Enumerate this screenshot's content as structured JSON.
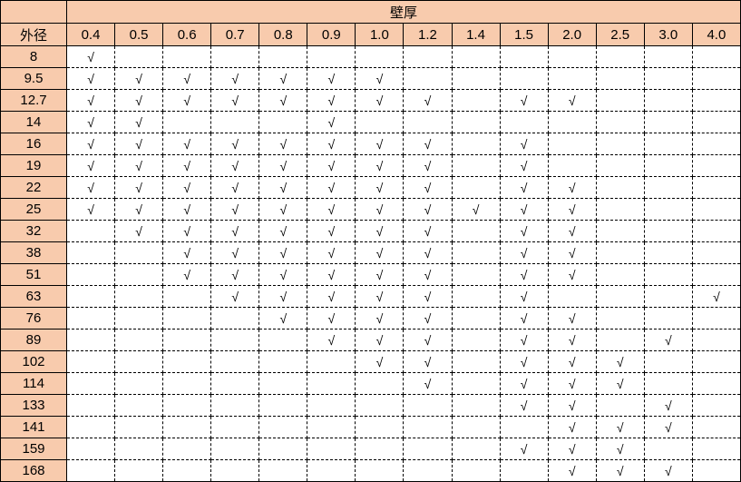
{
  "table": {
    "group_header": "壁厚",
    "row_header": "外径",
    "header_color": "#f8cbad",
    "columns": [
      "0.4",
      "0.5",
      "0.6",
      "0.7",
      "0.8",
      "0.9",
      "1.0",
      "1.2",
      "1.4",
      "1.5",
      "2.0",
      "2.5",
      "3.0",
      "4.0"
    ],
    "rows": [
      {
        "od": "8",
        "checks": [
          "√",
          "",
          "",
          "",
          "",
          "",
          "",
          "",
          "",
          "",
          "",
          "",
          "",
          ""
        ]
      },
      {
        "od": "9.5",
        "checks": [
          "√",
          "√",
          "√",
          "√",
          "√",
          "√",
          "√",
          "",
          "",
          "",
          "",
          "",
          "",
          ""
        ]
      },
      {
        "od": "12.7",
        "checks": [
          "√",
          "√",
          "√",
          "√",
          "√",
          "√",
          "√",
          "√",
          "",
          "√",
          "√",
          "",
          "",
          ""
        ]
      },
      {
        "od": "14",
        "checks": [
          "√",
          "√",
          "",
          "",
          "",
          "√",
          "",
          "",
          "",
          "",
          "",
          "",
          "",
          ""
        ]
      },
      {
        "od": "16",
        "checks": [
          "√",
          "√",
          "√",
          "√",
          "√",
          "√",
          "√",
          "√",
          "",
          "√",
          "",
          "",
          "",
          ""
        ]
      },
      {
        "od": "19",
        "checks": [
          "√",
          "√",
          "√",
          "√",
          "√",
          "√",
          "√",
          "√",
          "",
          "√",
          "",
          "",
          "",
          ""
        ]
      },
      {
        "od": "22",
        "checks": [
          "√",
          "√",
          "√",
          "√",
          "√",
          "√",
          "√",
          "√",
          "",
          "√",
          "√",
          "",
          "",
          ""
        ]
      },
      {
        "od": "25",
        "checks": [
          "√",
          "√",
          "√",
          "√",
          "√",
          "√",
          "√",
          "√",
          "√",
          "√",
          "√",
          "",
          "",
          ""
        ]
      },
      {
        "od": "32",
        "checks": [
          "",
          "√",
          "√",
          "√",
          "√",
          "√",
          "√",
          "√",
          "",
          "√",
          "√",
          "",
          "",
          ""
        ]
      },
      {
        "od": "38",
        "checks": [
          "",
          "",
          "√",
          "√",
          "√",
          "√",
          "√",
          "√",
          "",
          "√",
          "√",
          "",
          "",
          ""
        ]
      },
      {
        "od": "51",
        "checks": [
          "",
          "",
          "√",
          "√",
          "√",
          "√",
          "√",
          "√",
          "",
          "√",
          "√",
          "",
          "",
          ""
        ]
      },
      {
        "od": "63",
        "checks": [
          "",
          "",
          "",
          "√",
          "√",
          "√",
          "√",
          "√",
          "",
          "√",
          "",
          "",
          "",
          "√"
        ]
      },
      {
        "od": "76",
        "checks": [
          "",
          "",
          "",
          "",
          "√",
          "√",
          "√",
          "√",
          "",
          "√",
          "√",
          "",
          "",
          ""
        ]
      },
      {
        "od": "89",
        "checks": [
          "",
          "",
          "",
          "",
          "",
          "√",
          "√",
          "√",
          "",
          "√",
          "√",
          "",
          "√",
          ""
        ]
      },
      {
        "od": "102",
        "checks": [
          "",
          "",
          "",
          "",
          "",
          "",
          "√",
          "√",
          "",
          "√",
          "√",
          "√",
          "",
          ""
        ]
      },
      {
        "od": "114",
        "checks": [
          "",
          "",
          "",
          "",
          "",
          "",
          "",
          "√",
          "",
          "√",
          "√",
          "√",
          "",
          ""
        ]
      },
      {
        "od": "133",
        "checks": [
          "",
          "",
          "",
          "",
          "",
          "",
          "",
          "",
          "",
          "√",
          "√",
          "",
          "√",
          ""
        ]
      },
      {
        "od": "141",
        "checks": [
          "",
          "",
          "",
          "",
          "",
          "",
          "",
          "",
          "",
          "",
          "√",
          "√",
          "√",
          ""
        ]
      },
      {
        "od": "159",
        "checks": [
          "",
          "",
          "",
          "",
          "",
          "",
          "",
          "",
          "",
          "√",
          "√",
          "√",
          "",
          ""
        ]
      },
      {
        "od": "168",
        "checks": [
          "",
          "",
          "",
          "",
          "",
          "",
          "",
          "",
          "",
          "",
          "√",
          "√",
          "√",
          ""
        ]
      }
    ]
  }
}
